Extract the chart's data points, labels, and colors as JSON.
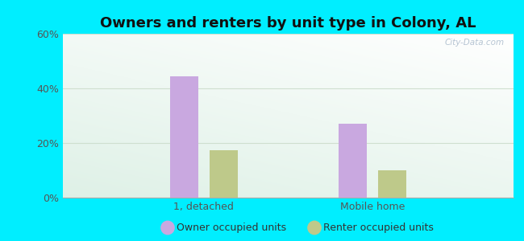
{
  "title": "Owners and renters by unit type in Colony, AL",
  "categories": [
    "1, detached",
    "Mobile home"
  ],
  "owner_values": [
    44.4,
    27.0
  ],
  "renter_values": [
    17.5,
    10.0
  ],
  "owner_color": "#c9a8e0",
  "renter_color": "#bec98a",
  "owner_label": "Owner occupied units",
  "renter_label": "Renter occupied units",
  "ylim": [
    0,
    60
  ],
  "yticks": [
    0,
    20,
    40,
    60
  ],
  "ytick_labels": [
    "0%",
    "20%",
    "40%",
    "60%"
  ],
  "outer_bg": "#00eeff",
  "watermark": "City-Data.com",
  "title_fontsize": 13,
  "bar_width": 0.25,
  "group_centers": [
    0.75,
    2.25
  ]
}
